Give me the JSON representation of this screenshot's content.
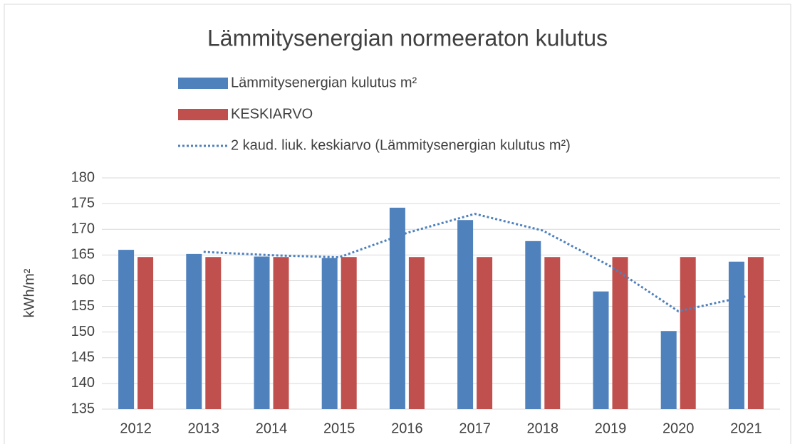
{
  "chart_data": {
    "type": "bar",
    "title": "Lämmitysenergian normeeraton kulutus",
    "y_label": "kWh/m²",
    "categories": [
      "2012",
      "2013",
      "2014",
      "2015",
      "2016",
      "2017",
      "2018",
      "2019",
      "2020",
      "2021"
    ],
    "series": [
      {
        "name": "Lämmitysenergian kulutus m²",
        "type": "bar",
        "color": "#4f81bd",
        "values": [
          166.0,
          165.2,
          164.7,
          164.4,
          174.2,
          171.8,
          167.7,
          157.9,
          150.2,
          163.7
        ]
      },
      {
        "name": "KESKIARVO",
        "type": "bar",
        "color": "#c0504d",
        "values": [
          164.6,
          164.6,
          164.6,
          164.6,
          164.6,
          164.6,
          164.6,
          164.6,
          164.6,
          164.6
        ]
      },
      {
        "name": "2 kaud. liuk. keskiarvo (Lämmitysenergian kulutus m²)",
        "type": "line",
        "dash": "dotted",
        "color": "#4f81bd",
        "values": [
          null,
          165.6,
          164.95,
          164.55,
          169.3,
          173.0,
          169.75,
          162.8,
          154.05,
          156.95
        ]
      }
    ],
    "ylim": [
      135,
      180
    ],
    "yticks": [
      135,
      140,
      145,
      150,
      155,
      160,
      165,
      170,
      175,
      180
    ],
    "grid": true
  }
}
